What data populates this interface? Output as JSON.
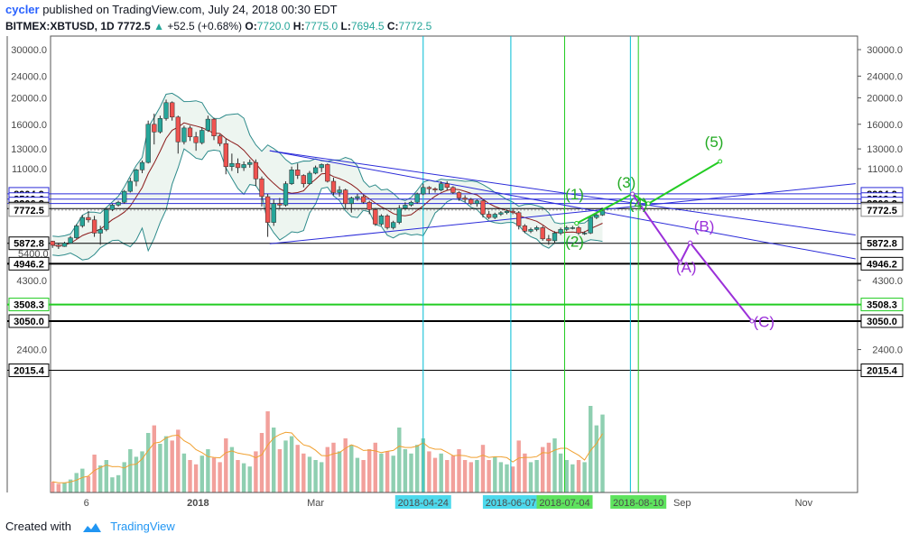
{
  "header": {
    "user": "cycler",
    "published": " published on TradingView.com, July 24, 2018 00:30 EDT",
    "symbol": "BITMEX:XBTUSD, 1D",
    "last": "7772.5",
    "arrow": "▲",
    "change": "+52.5 (+0.68%)",
    "o_label": "O:",
    "o": "7720.0",
    "h_label": "H:",
    "h": "7775.0",
    "l_label": "L:",
    "l": "7694.5",
    "c_label": "C:",
    "c": "7772.5"
  },
  "footer": {
    "created_with": "Created with",
    "brand": "TradingView"
  },
  "colors": {
    "up": "#26a69a",
    "down": "#ef5350",
    "blue_line": "#2b2bd9",
    "cyan": "#00bcd4",
    "green": "#22cc22",
    "purple": "#9b30d9",
    "wave_green": "#22aa22",
    "band": "#2e8b8b",
    "ma_dark": "#8b1a1a",
    "vol_ma": "#f0a030"
  },
  "chart_data": {
    "type": "candlestick",
    "scale": "log",
    "y_ticks": [
      30000.0,
      24000.0,
      20000.0,
      16000.0,
      13000.0,
      11000.0,
      4300.0,
      2400.0
    ],
    "y_tick_labels": [
      "30000.0",
      "24000.0",
      "20000.0",
      "16000.0",
      "13000.0",
      "11000.0",
      "4300.0",
      "2400.0"
    ],
    "partial_tick": "5400.0",
    "x_ticks": [
      {
        "label": "6",
        "date": "2017-11-06",
        "bold": false
      },
      {
        "label": "2018",
        "date": "2018-01-01",
        "bold": true
      },
      {
        "label": "Mar",
        "date": "2018-03-01",
        "bold": false
      },
      {
        "label": "Sep",
        "date": "2018-09-01",
        "bold": false
      },
      {
        "label": "Nov",
        "date": "2018-11-01",
        "bold": false
      }
    ],
    "price_levels": [
      {
        "value": 8904.9,
        "label": "8904.9",
        "style": "blue"
      },
      {
        "value": 8519.6,
        "label": "8519.6",
        "style": "blue"
      },
      {
        "value": 8206.2,
        "label": "8206.2",
        "style": "blue"
      },
      {
        "value": 7865.7,
        "label": "7865.7",
        "style": "black"
      },
      {
        "value": 7772.5,
        "label": "7772.5",
        "style": "last"
      },
      {
        "value": 5872.8,
        "label": "5872.8",
        "style": "black"
      },
      {
        "value": 4946.2,
        "label": "4946.2",
        "style": "black_bold"
      },
      {
        "value": 3508.3,
        "label": "3508.3",
        "style": "green"
      },
      {
        "value": 3050.0,
        "label": "3050.0",
        "style": "black_bold"
      },
      {
        "value": 2015.4,
        "label": "2015.4",
        "style": "black"
      }
    ],
    "vertical_markers": [
      {
        "date": "2018-04-24",
        "label": "2018-04-24",
        "color": "cyan"
      },
      {
        "date": "2018-06-07",
        "label": "2018-06-07",
        "color": "cyan"
      },
      {
        "date": "2018-07-04",
        "label": "2018-07-04",
        "color": "green"
      },
      {
        "date": "2018-08-06",
        "label": "",
        "color": "cyan"
      },
      {
        "date": "2018-08-10",
        "label": "2018-08-10",
        "color": "green"
      }
    ],
    "elliott_waves": [
      {
        "label": "(1)",
        "date": "2018-07-09",
        "price": 8500,
        "color": "green"
      },
      {
        "label": "(2)",
        "date": "2018-07-09",
        "price": 5700,
        "color": "green"
      },
      {
        "label": "(3)",
        "date": "2018-08-04",
        "price": 9400,
        "color": "green"
      },
      {
        "label": "(4)",
        "date": "2018-08-10",
        "price": 7850,
        "color": "green"
      },
      {
        "label": "(5)",
        "date": "2018-09-17",
        "price": 13200,
        "color": "green"
      },
      {
        "label": "(A)",
        "date": "2018-09-03",
        "price": 4600,
        "color": "purple"
      },
      {
        "label": "(B)",
        "date": "2018-09-12",
        "price": 6500,
        "color": "purple"
      },
      {
        "label": "(C)",
        "date": "2018-10-12",
        "price": 2900,
        "color": "purple"
      }
    ],
    "impulse_path": [
      {
        "date": "2018-07-10",
        "price": 6950
      },
      {
        "date": "2018-08-07",
        "price": 8900
      },
      {
        "date": "2018-08-15",
        "price": 8200
      },
      {
        "date": "2018-09-20",
        "price": 11700
      }
    ],
    "correction_path": [
      {
        "date": "2018-08-07",
        "price": 8900
      },
      {
        "date": "2018-08-31",
        "price": 5000
      },
      {
        "date": "2018-09-05",
        "price": 5900
      },
      {
        "date": "2018-10-06",
        "price": 3050
      }
    ],
    "trend_lines": [
      {
        "from": {
          "date": "2018-02-06",
          "price": 12800
        },
        "to": {
          "date": "2018-11-27",
          "price": 5150
        }
      },
      {
        "from": {
          "date": "2018-02-06",
          "price": 12800
        },
        "to": {
          "date": "2018-11-27",
          "price": 6300
        }
      },
      {
        "from": {
          "date": "2018-02-06",
          "price": 5850
        },
        "to": {
          "date": "2018-11-27",
          "price": 9700
        }
      }
    ],
    "candles": [
      [
        "2017-10-20",
        5980,
        6000,
        5650,
        5780
      ],
      [
        "2017-10-23",
        5780,
        5900,
        5600,
        5720
      ],
      [
        "2017-10-26",
        5720,
        5950,
        5700,
        5880
      ],
      [
        "2017-10-29",
        5880,
        6250,
        5850,
        6150
      ],
      [
        "2017-11-01",
        6150,
        6900,
        6100,
        6800
      ],
      [
        "2017-11-04",
        6800,
        7450,
        6700,
        7300
      ],
      [
        "2017-11-07",
        7300,
        7700,
        7000,
        7150
      ],
      [
        "2017-11-10",
        7150,
        7400,
        6200,
        6400
      ],
      [
        "2017-11-13",
        6400,
        6800,
        5800,
        6600
      ],
      [
        "2017-11-16",
        6600,
        7900,
        6500,
        7800
      ],
      [
        "2017-11-19",
        7800,
        8200,
        7700,
        8100
      ],
      [
        "2017-11-22",
        8100,
        8400,
        8000,
        8300
      ],
      [
        "2017-11-25",
        8300,
        9200,
        8200,
        9100
      ],
      [
        "2017-11-28",
        9100,
        10200,
        9000,
        9900
      ],
      [
        "2017-12-01",
        9900,
        11000,
        9500,
        10900
      ],
      [
        "2017-12-04",
        10900,
        11800,
        10600,
        11600
      ],
      [
        "2017-12-07",
        11600,
        16500,
        11500,
        16000
      ],
      [
        "2017-12-10",
        16000,
        17500,
        13500,
        15000
      ],
      [
        "2017-12-13",
        15000,
        17200,
        14800,
        16800
      ],
      [
        "2017-12-16",
        16800,
        19700,
        16500,
        19200
      ],
      [
        "2017-12-19",
        19200,
        19400,
        16500,
        17000
      ],
      [
        "2017-12-22",
        17000,
        17200,
        12500,
        13800
      ],
      [
        "2017-12-25",
        13800,
        15800,
        13500,
        15500
      ],
      [
        "2017-12-28",
        15500,
        15800,
        13900,
        14400
      ],
      [
        "2017-12-31",
        14400,
        15000,
        12800,
        13700
      ],
      [
        "2018-01-03",
        13700,
        15600,
        13500,
        15200
      ],
      [
        "2018-01-06",
        15200,
        17200,
        15000,
        16700
      ],
      [
        "2018-01-09",
        16700,
        16900,
        14000,
        14500
      ],
      [
        "2018-01-12",
        14500,
        14700,
        13300,
        13600
      ],
      [
        "2018-01-15",
        13600,
        14200,
        10500,
        11200
      ],
      [
        "2018-01-18",
        11200,
        12500,
        10800,
        11500
      ],
      [
        "2018-01-21",
        11500,
        12000,
        10600,
        11100
      ],
      [
        "2018-01-24",
        11100,
        11700,
        10800,
        11400
      ],
      [
        "2018-01-27",
        11400,
        11900,
        11100,
        11600
      ],
      [
        "2018-01-30",
        11600,
        11900,
        9500,
        10100
      ],
      [
        "2018-02-02",
        10100,
        10300,
        8000,
        8700
      ],
      [
        "2018-02-05",
        8700,
        8900,
        6200,
        7000
      ],
      [
        "2018-02-08",
        7000,
        8500,
        6800,
        8200
      ],
      [
        "2018-02-11",
        8200,
        8600,
        7900,
        8100
      ],
      [
        "2018-02-14",
        8100,
        9900,
        8000,
        9700
      ],
      [
        "2018-02-17",
        9700,
        11200,
        9600,
        10900
      ],
      [
        "2018-02-20",
        10900,
        11500,
        10100,
        10400
      ],
      [
        "2018-02-23",
        10400,
        10500,
        9400,
        9700
      ],
      [
        "2018-02-26",
        9700,
        10800,
        9600,
        10600
      ],
      [
        "2018-03-01",
        10600,
        11300,
        10500,
        11100
      ],
      [
        "2018-03-04",
        11100,
        11500,
        10700,
        11400
      ],
      [
        "2018-03-07",
        11400,
        11500,
        9800,
        9900
      ],
      [
        "2018-03-10",
        9900,
        10200,
        8800,
        9000
      ],
      [
        "2018-03-13",
        9000,
        9500,
        8700,
        9200
      ],
      [
        "2018-03-16",
        9200,
        9300,
        7900,
        8200
      ],
      [
        "2018-03-19",
        8200,
        8700,
        7600,
        8600
      ],
      [
        "2018-03-22",
        8600,
        8900,
        8400,
        8700
      ],
      [
        "2018-03-25",
        8700,
        8800,
        8200,
        8300
      ],
      [
        "2018-03-28",
        8300,
        8400,
        7500,
        7800
      ],
      [
        "2018-03-31",
        7800,
        7900,
        6800,
        6900
      ],
      [
        "2018-04-03",
        6900,
        7500,
        6800,
        7400
      ],
      [
        "2018-04-06",
        7400,
        7500,
        6600,
        6700
      ],
      [
        "2018-04-09",
        6700,
        7100,
        6600,
        7000
      ],
      [
        "2018-04-12",
        7000,
        8100,
        6900,
        7900
      ],
      [
        "2018-04-15",
        7900,
        8300,
        7800,
        8100
      ],
      [
        "2018-04-18",
        8100,
        8400,
        8000,
        8300
      ],
      [
        "2018-04-21",
        8300,
        9000,
        8200,
        8900
      ],
      [
        "2018-04-24",
        8900,
        9700,
        8800,
        9400
      ],
      [
        "2018-04-27",
        9400,
        9500,
        8900,
        9300
      ],
      [
        "2018-04-30",
        9300,
        9400,
        9000,
        9200
      ],
      [
        "2018-05-03",
        9200,
        9900,
        9100,
        9700
      ],
      [
        "2018-05-06",
        9700,
        9900,
        9200,
        9400
      ],
      [
        "2018-05-09",
        9400,
        9500,
        8900,
        9000
      ],
      [
        "2018-05-12",
        9000,
        9100,
        8400,
        8600
      ],
      [
        "2018-05-15",
        8600,
        8800,
        8300,
        8500
      ],
      [
        "2018-05-18",
        8500,
        8600,
        8100,
        8200
      ],
      [
        "2018-05-21",
        8200,
        8500,
        8000,
        8400
      ],
      [
        "2018-05-24",
        8400,
        8500,
        7300,
        7500
      ],
      [
        "2018-05-27",
        7500,
        7700,
        7200,
        7300
      ],
      [
        "2018-05-30",
        7300,
        7600,
        7200,
        7500
      ],
      [
        "2018-06-02",
        7500,
        7700,
        7400,
        7600
      ],
      [
        "2018-06-05",
        7600,
        7800,
        7500,
        7700
      ],
      [
        "2018-06-08",
        7700,
        7800,
        7500,
        7600
      ],
      [
        "2018-06-11",
        7600,
        7700,
        6600,
        6800
      ],
      [
        "2018-06-14",
        6800,
        6900,
        6400,
        6500
      ],
      [
        "2018-06-17",
        6500,
        6700,
        6400,
        6600
      ],
      [
        "2018-06-20",
        6600,
        6800,
        6500,
        6700
      ],
      [
        "2018-06-23",
        6700,
        6800,
        6000,
        6100
      ],
      [
        "2018-06-26",
        6100,
        6300,
        5800,
        6000
      ],
      [
        "2018-06-29",
        6000,
        6500,
        5850,
        6400
      ],
      [
        "2018-07-02",
        6400,
        6700,
        6300,
        6600
      ],
      [
        "2018-07-05",
        6600,
        6800,
        6500,
        6700
      ],
      [
        "2018-07-08",
        6700,
        6800,
        6600,
        6700
      ],
      [
        "2018-07-11",
        6700,
        6800,
        6300,
        6400
      ],
      [
        "2018-07-14",
        6400,
        6500,
        6300,
        6400
      ],
      [
        "2018-07-17",
        6400,
        7400,
        6350,
        7300
      ],
      [
        "2018-07-20",
        7300,
        7600,
        7200,
        7450
      ],
      [
        "2018-07-23",
        7450,
        7800,
        7400,
        7720
      ]
    ],
    "volume": [
      [
        "2017-10-20",
        0.1
      ],
      [
        "2017-10-23",
        0.08
      ],
      [
        "2017-10-26",
        0.09
      ],
      [
        "2017-10-29",
        0.12
      ],
      [
        "2017-11-01",
        0.18
      ],
      [
        "2017-11-04",
        0.22
      ],
      [
        "2017-11-07",
        0.15
      ],
      [
        "2017-11-10",
        0.35
      ],
      [
        "2017-11-13",
        0.25
      ],
      [
        "2017-11-16",
        0.3
      ],
      [
        "2017-11-19",
        0.14
      ],
      [
        "2017-11-22",
        0.16
      ],
      [
        "2017-11-25",
        0.28
      ],
      [
        "2017-11-28",
        0.4
      ],
      [
        "2017-12-01",
        0.33
      ],
      [
        "2017-12-04",
        0.38
      ],
      [
        "2017-12-07",
        0.55
      ],
      [
        "2017-12-10",
        0.62
      ],
      [
        "2017-12-13",
        0.45
      ],
      [
        "2017-12-16",
        0.52
      ],
      [
        "2017-12-19",
        0.48
      ],
      [
        "2017-12-22",
        0.58
      ],
      [
        "2017-12-25",
        0.36
      ],
      [
        "2017-12-28",
        0.3
      ],
      [
        "2017-12-31",
        0.26
      ],
      [
        "2018-01-03",
        0.34
      ],
      [
        "2018-01-06",
        0.4
      ],
      [
        "2018-01-09",
        0.32
      ],
      [
        "2018-01-12",
        0.28
      ],
      [
        "2018-01-15",
        0.5
      ],
      [
        "2018-01-18",
        0.42
      ],
      [
        "2018-01-21",
        0.3
      ],
      [
        "2018-01-24",
        0.27
      ],
      [
        "2018-01-27",
        0.24
      ],
      [
        "2018-01-30",
        0.38
      ],
      [
        "2018-02-02",
        0.55
      ],
      [
        "2018-02-05",
        0.75
      ],
      [
        "2018-02-08",
        0.6
      ],
      [
        "2018-02-11",
        0.4
      ],
      [
        "2018-02-14",
        0.48
      ],
      [
        "2018-02-17",
        0.52
      ],
      [
        "2018-02-20",
        0.44
      ],
      [
        "2018-02-23",
        0.36
      ],
      [
        "2018-02-26",
        0.33
      ],
      [
        "2018-03-01",
        0.3
      ],
      [
        "2018-03-04",
        0.28
      ],
      [
        "2018-03-07",
        0.42
      ],
      [
        "2018-03-10",
        0.46
      ],
      [
        "2018-03-13",
        0.38
      ],
      [
        "2018-03-16",
        0.5
      ],
      [
        "2018-03-19",
        0.44
      ],
      [
        "2018-03-22",
        0.32
      ],
      [
        "2018-03-25",
        0.3
      ],
      [
        "2018-03-28",
        0.4
      ],
      [
        "2018-03-31",
        0.46
      ],
      [
        "2018-04-03",
        0.36
      ],
      [
        "2018-04-06",
        0.38
      ],
      [
        "2018-04-09",
        0.34
      ],
      [
        "2018-04-12",
        0.6
      ],
      [
        "2018-04-15",
        0.4
      ],
      [
        "2018-04-18",
        0.36
      ],
      [
        "2018-04-21",
        0.44
      ],
      [
        "2018-04-24",
        0.5
      ],
      [
        "2018-04-27",
        0.38
      ],
      [
        "2018-04-30",
        0.32
      ],
      [
        "2018-05-03",
        0.36
      ],
      [
        "2018-05-06",
        0.3
      ],
      [
        "2018-05-09",
        0.34
      ],
      [
        "2018-05-12",
        0.4
      ],
      [
        "2018-05-15",
        0.3
      ],
      [
        "2018-05-18",
        0.28
      ],
      [
        "2018-05-21",
        0.3
      ],
      [
        "2018-05-24",
        0.44
      ],
      [
        "2018-05-27",
        0.3
      ],
      [
        "2018-05-30",
        0.33
      ],
      [
        "2018-06-02",
        0.28
      ],
      [
        "2018-06-05",
        0.26
      ],
      [
        "2018-06-08",
        0.24
      ],
      [
        "2018-06-11",
        0.48
      ],
      [
        "2018-06-14",
        0.36
      ],
      [
        "2018-06-17",
        0.28
      ],
      [
        "2018-06-20",
        0.3
      ],
      [
        "2018-06-23",
        0.42
      ],
      [
        "2018-06-26",
        0.46
      ],
      [
        "2018-06-29",
        0.5
      ],
      [
        "2018-07-02",
        0.36
      ],
      [
        "2018-07-05",
        0.3
      ],
      [
        "2018-07-08",
        0.26
      ],
      [
        "2018-07-11",
        0.3
      ],
      [
        "2018-07-14",
        0.28
      ],
      [
        "2018-07-17",
        0.8
      ],
      [
        "2018-07-20",
        0.62
      ],
      [
        "2018-07-23",
        0.72
      ]
    ]
  }
}
